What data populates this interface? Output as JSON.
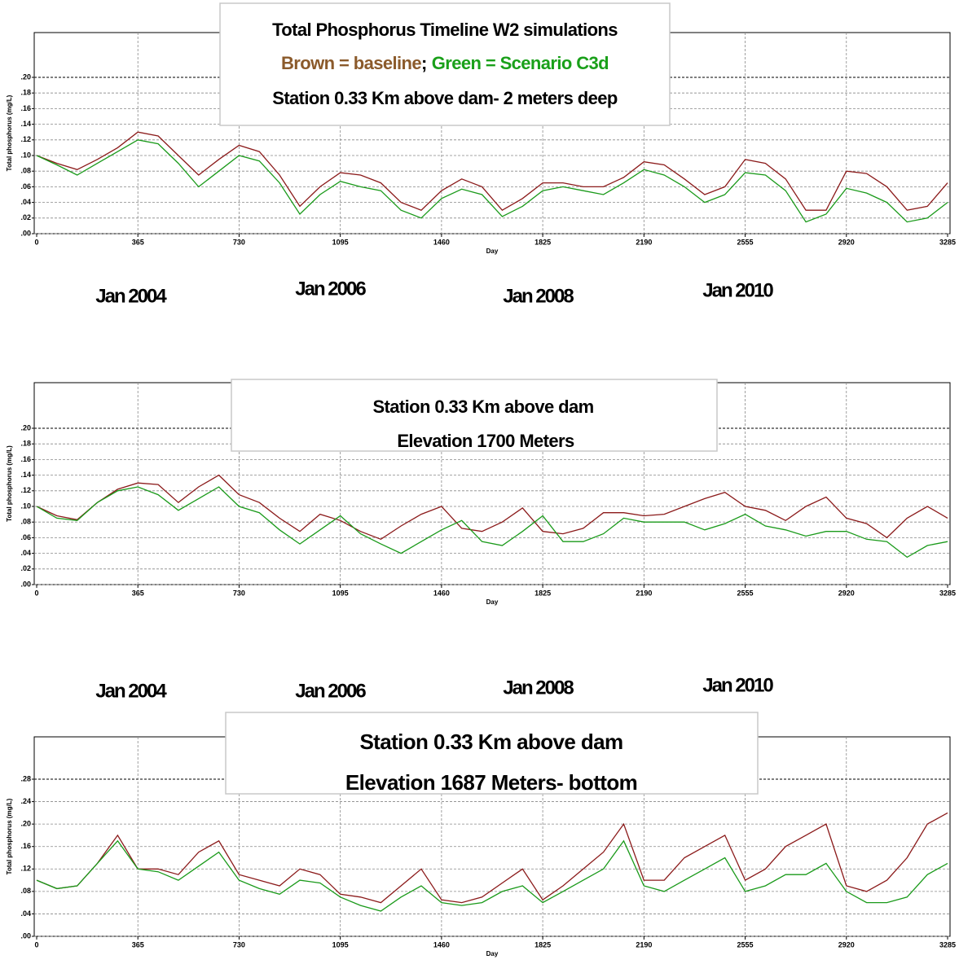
{
  "chart_data": [
    {
      "type": "line",
      "title": "Total Phosphorus Timeline W2 simulations",
      "notes": [
        "Brown = baseline",
        ";",
        "Green = Scenario C3d"
      ],
      "subtitle": "Station 0.33 Km above dam- 2 meters deep",
      "x_label": "Day",
      "y_label": "Total phosphorus (mg/L)",
      "annotations": [
        "Jan 2004",
        "Jan 2006",
        "Jan 2008",
        "Jan 2010"
      ],
      "x": [
        0,
        73,
        146,
        219,
        292,
        365,
        438,
        511,
        584,
        657,
        730,
        803,
        876,
        949,
        1022,
        1095,
        1168,
        1241,
        1314,
        1387,
        1460,
        1533,
        1606,
        1679,
        1752,
        1825,
        1898,
        1971,
        2044,
        2117,
        2190,
        2263,
        2336,
        2409,
        2482,
        2555,
        2628,
        2701,
        2774,
        2847,
        2920,
        2993,
        3066,
        3139,
        3212,
        3285
      ],
      "series": [
        {
          "color": "#8b1a1a",
          "values": [
            0.1,
            0.09,
            0.082,
            0.095,
            0.11,
            0.13,
            0.125,
            0.1,
            0.075,
            0.095,
            0.113,
            0.105,
            0.075,
            0.035,
            0.06,
            0.078,
            0.075,
            0.065,
            0.04,
            0.03,
            0.055,
            0.07,
            0.06,
            0.03,
            0.045,
            0.065,
            0.065,
            0.06,
            0.06,
            0.072,
            0.092,
            0.088,
            0.07,
            0.05,
            0.06,
            0.095,
            0.09,
            0.07,
            0.03,
            0.03,
            0.08,
            0.077,
            0.06,
            0.03,
            0.035,
            0.065
          ]
        },
        {
          "color": "#1a9a1a",
          "values": [
            0.1,
            0.088,
            0.075,
            0.09,
            0.105,
            0.12,
            0.115,
            0.09,
            0.06,
            0.08,
            0.1,
            0.093,
            0.065,
            0.025,
            0.05,
            0.067,
            0.06,
            0.055,
            0.03,
            0.02,
            0.045,
            0.057,
            0.05,
            0.022,
            0.035,
            0.055,
            0.06,
            0.055,
            0.05,
            0.065,
            0.082,
            0.075,
            0.06,
            0.04,
            0.05,
            0.078,
            0.075,
            0.055,
            0.015,
            0.025,
            0.058,
            0.052,
            0.04,
            0.015,
            0.02,
            0.04
          ]
        }
      ],
      "xlim": [
        0,
        3285
      ],
      "xticks": [
        0,
        365,
        730,
        1095,
        1460,
        1825,
        2190,
        2555,
        2920,
        3285
      ],
      "ylim": [
        0,
        0.2
      ],
      "yticks": [
        {
          "value": 0,
          "label": ".00"
        },
        {
          "value": 0.02,
          "label": ".02"
        },
        {
          "value": 0.04,
          "label": ".04"
        },
        {
          "value": 0.06,
          "label": ".06"
        },
        {
          "value": 0.08,
          "label": ".08"
        },
        {
          "value": 0.1,
          "label": ".10"
        },
        {
          "value": 0.12,
          "label": ".12"
        },
        {
          "value": 0.14,
          "label": ".14"
        },
        {
          "value": 0.16,
          "label": ".16"
        },
        {
          "value": 0.18,
          "label": ".18"
        },
        {
          "value": 0.2,
          "label": ".20"
        }
      ],
      "grid": true
    },
    {
      "type": "line",
      "title": "Station 0.33 Km above dam",
      "subtitle": "Elevation 1700 Meters",
      "x_label": "Day",
      "y_label": "Total phosphorus (mg/L)",
      "annotations": [
        "Jan 2004",
        "Jan 2006",
        "Jan 2008",
        "Jan 2010"
      ],
      "x": [
        0,
        73,
        146,
        219,
        292,
        365,
        438,
        511,
        584,
        657,
        730,
        803,
        876,
        949,
        1022,
        1095,
        1168,
        1241,
        1314,
        1387,
        1460,
        1533,
        1606,
        1679,
        1752,
        1825,
        1898,
        1971,
        2044,
        2117,
        2190,
        2263,
        2336,
        2409,
        2482,
        2555,
        2628,
        2701,
        2774,
        2847,
        2920,
        2993,
        3066,
        3139,
        3212,
        3285
      ],
      "series": [
        {
          "color": "#8b1a1a",
          "values": [
            0.1,
            0.088,
            0.083,
            0.105,
            0.122,
            0.13,
            0.128,
            0.105,
            0.125,
            0.14,
            0.115,
            0.105,
            0.085,
            0.068,
            0.09,
            0.082,
            0.068,
            0.058,
            0.075,
            0.09,
            0.1,
            0.072,
            0.068,
            0.08,
            0.098,
            0.068,
            0.065,
            0.072,
            0.092,
            0.092,
            0.088,
            0.09,
            0.1,
            0.11,
            0.118,
            0.1,
            0.095,
            0.082,
            0.1,
            0.112,
            0.085,
            0.078,
            0.06,
            0.085,
            0.1,
            0.085
          ]
        },
        {
          "color": "#1a9a1a",
          "values": [
            0.1,
            0.085,
            0.082,
            0.105,
            0.12,
            0.125,
            0.115,
            0.095,
            0.11,
            0.125,
            0.1,
            0.092,
            0.07,
            0.052,
            0.07,
            0.088,
            0.065,
            0.052,
            0.04,
            0.055,
            0.07,
            0.082,
            0.055,
            0.05,
            0.068,
            0.088,
            0.055,
            0.055,
            0.065,
            0.085,
            0.08,
            0.08,
            0.08,
            0.07,
            0.078,
            0.09,
            0.075,
            0.07,
            0.062,
            0.068,
            0.068,
            0.058,
            0.055,
            0.035,
            0.05,
            0.055
          ]
        }
      ],
      "xlim": [
        0,
        3285
      ],
      "xticks": [
        0,
        365,
        730,
        1095,
        1460,
        1825,
        2190,
        2555,
        2920,
        3285
      ],
      "ylim": [
        0,
        0.2
      ],
      "yticks": [
        {
          "value": 0,
          "label": ".00"
        },
        {
          "value": 0.02,
          "label": ".02"
        },
        {
          "value": 0.04,
          "label": ".04"
        },
        {
          "value": 0.06,
          "label": ".06"
        },
        {
          "value": 0.08,
          "label": ".08"
        },
        {
          "value": 0.1,
          "label": ".10"
        },
        {
          "value": 0.12,
          "label": ".12"
        },
        {
          "value": 0.14,
          "label": ".14"
        },
        {
          "value": 0.16,
          "label": ".16"
        },
        {
          "value": 0.18,
          "label": ".18"
        },
        {
          "value": 0.2,
          "label": ".20"
        }
      ],
      "grid": true
    },
    {
      "type": "line",
      "title": "Station 0.33 Km above dam",
      "subtitle": "Elevation 1687 Meters- bottom",
      "x_label": "Day",
      "y_label": "Total phosphorus (mg/L)",
      "x": [
        0,
        73,
        146,
        219,
        292,
        365,
        438,
        511,
        584,
        657,
        730,
        803,
        876,
        949,
        1022,
        1095,
        1168,
        1241,
        1314,
        1387,
        1460,
        1533,
        1606,
        1679,
        1752,
        1825,
        1898,
        1971,
        2044,
        2117,
        2190,
        2263,
        2336,
        2409,
        2482,
        2555,
        2628,
        2701,
        2774,
        2847,
        2920,
        2993,
        3066,
        3139,
        3212,
        3285
      ],
      "series": [
        {
          "color": "#8b1a1a",
          "values": [
            0.1,
            0.085,
            0.09,
            0.13,
            0.18,
            0.12,
            0.12,
            0.11,
            0.15,
            0.17,
            0.11,
            0.1,
            0.09,
            0.12,
            0.11,
            0.075,
            0.07,
            0.06,
            0.09,
            0.12,
            0.065,
            0.06,
            0.07,
            0.095,
            0.12,
            0.065,
            0.09,
            0.12,
            0.15,
            0.2,
            0.1,
            0.1,
            0.14,
            0.16,
            0.18,
            0.1,
            0.12,
            0.16,
            0.18,
            0.2,
            0.09,
            0.08,
            0.1,
            0.14,
            0.2,
            0.22
          ]
        },
        {
          "color": "#1a9a1a",
          "values": [
            0.1,
            0.085,
            0.09,
            0.13,
            0.17,
            0.12,
            0.115,
            0.1,
            0.125,
            0.15,
            0.1,
            0.085,
            0.075,
            0.1,
            0.095,
            0.07,
            0.055,
            0.045,
            0.07,
            0.09,
            0.06,
            0.055,
            0.06,
            0.08,
            0.09,
            0.06,
            0.08,
            0.1,
            0.12,
            0.17,
            0.09,
            0.08,
            0.1,
            0.12,
            0.14,
            0.08,
            0.09,
            0.11,
            0.11,
            0.13,
            0.08,
            0.06,
            0.06,
            0.07,
            0.11,
            0.13
          ]
        }
      ],
      "xlim": [
        0,
        3285
      ],
      "xticks": [
        0,
        365,
        730,
        1095,
        1460,
        1825,
        2190,
        2555,
        2920,
        3285
      ],
      "ylim": [
        0,
        0.28
      ],
      "yticks": [
        {
          "value": 0,
          "label": ".00"
        },
        {
          "value": 0.04,
          "label": ".04"
        },
        {
          "value": 0.08,
          "label": ".08"
        },
        {
          "value": 0.12,
          "label": ".12"
        },
        {
          "value": 0.16,
          "label": ".16"
        },
        {
          "value": 0.2,
          "label": ".20"
        },
        {
          "value": 0.24,
          "label": ".24"
        },
        {
          "value": 0.28,
          "label": ".28"
        }
      ],
      "grid": true
    }
  ]
}
